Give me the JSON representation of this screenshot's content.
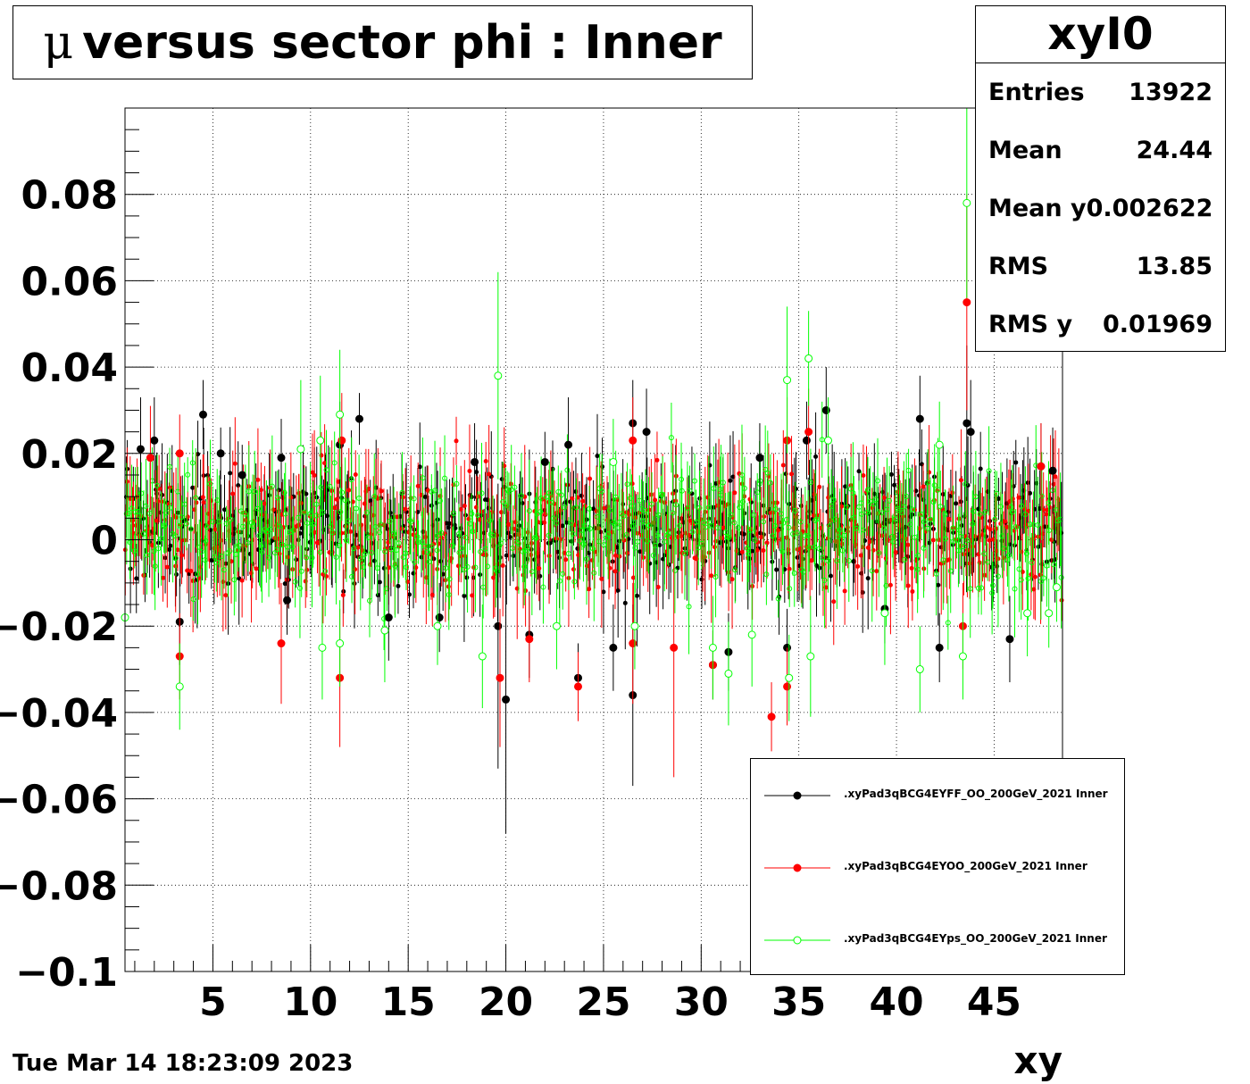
{
  "title": {
    "symbol": "μ",
    "text": "versus sector phi : Inner"
  },
  "stats": {
    "name": "xyI0",
    "rows": [
      {
        "label": "Entries",
        "value": "13922"
      },
      {
        "label": "Mean",
        "value": "24.44"
      },
      {
        "label": "Mean y",
        "value": "0.002622"
      },
      {
        "label": "RMS",
        "value": "13.85"
      },
      {
        "label": "RMS y",
        "value": "0.01969"
      }
    ]
  },
  "legend": [
    {
      "label": ".xyPad3qBCG4EYFF_OO_200GeV_2021 Inner",
      "color": "#000000",
      "marker": "filled-circle"
    },
    {
      "label": ".xyPad3qBCG4EYOO_200GeV_2021 Inner",
      "color": "#ff0000",
      "marker": "filled-circle"
    },
    {
      "label": ".xyPad3qBCG4EYps_OO_200GeV_2021 Inner",
      "color": "#00ff00",
      "marker": "open-circle"
    }
  ],
  "datestamp": "Tue Mar 14 18:23:09 2023",
  "chart_data": {
    "type": "scatter",
    "xlabel": "xy",
    "ylabel": "",
    "xlim": [
      0.5,
      48.5
    ],
    "ylim": [
      -0.1,
      0.1
    ],
    "x_ticks": [
      5,
      10,
      15,
      20,
      25,
      30,
      35,
      40,
      45
    ],
    "y_ticks": [
      -0.1,
      -0.08,
      -0.06,
      -0.04,
      -0.02,
      0,
      0.02,
      0.04,
      0.06,
      0.08
    ],
    "y_tick_labels": [
      "−0.1",
      "−0.08",
      "−0.06",
      "−0.04",
      "−0.02",
      "0",
      "0.02",
      "0.04",
      "0.06",
      "0.08"
    ],
    "grid": true,
    "legend_position": "bottom-right",
    "series": [
      {
        "name": ".xyPad3qBCG4EYFF_OO_200GeV_2021 Inner",
        "color": "#000000",
        "marker": "filled-circle",
        "points": [
          [
            1.3,
            0.021,
            0.012
          ],
          [
            2.0,
            0.023,
            0.01
          ],
          [
            3.3,
            -0.019,
            0.01
          ],
          [
            4.5,
            0.029,
            0.008
          ],
          [
            5.4,
            0.02,
            0.006
          ],
          [
            6.5,
            0.015,
            0.007
          ],
          [
            8.5,
            0.019,
            0.009
          ],
          [
            8.8,
            -0.014,
            0.008
          ],
          [
            11.5,
            0.022,
            0.01
          ],
          [
            12.5,
            0.028,
            0.006
          ],
          [
            14.0,
            -0.018,
            0.01
          ],
          [
            16.6,
            -0.018,
            0.008
          ],
          [
            18.4,
            0.018,
            0.009
          ],
          [
            19.6,
            -0.02,
            0.033
          ],
          [
            20.0,
            -0.037,
            0.031
          ],
          [
            21.2,
            -0.022,
            0.01
          ],
          [
            22.0,
            0.018,
            0.007
          ],
          [
            23.2,
            0.022,
            0.011
          ],
          [
            23.7,
            -0.032,
            0.008
          ],
          [
            25.5,
            -0.025,
            0.01
          ],
          [
            26.5,
            -0.036,
            0.021
          ],
          [
            26.5,
            0.027,
            0.01
          ],
          [
            27.2,
            0.025,
            0.01
          ],
          [
            30.6,
            -0.029,
            0.008
          ],
          [
            31.4,
            -0.026,
            0.009
          ],
          [
            33.0,
            0.019,
            0.008
          ],
          [
            34.4,
            -0.025,
            0.009
          ],
          [
            35.4,
            0.023,
            0.009
          ],
          [
            36.4,
            0.03,
            0.01
          ],
          [
            39.4,
            -0.016,
            0.008
          ],
          [
            41.2,
            0.028,
            0.01
          ],
          [
            42.2,
            -0.025,
            0.008
          ],
          [
            43.6,
            0.027,
            0.018
          ],
          [
            43.8,
            0.025,
            0.012
          ],
          [
            45.8,
            -0.023,
            0.01
          ],
          [
            47.4,
            0.017,
            0.01
          ],
          [
            48.0,
            0.016,
            0.01
          ]
        ]
      },
      {
        "name": ".xyPad3qBCG4EYOO_200GeV_2021 Inner",
        "color": "#ff0000",
        "marker": "filled-circle",
        "points": [
          [
            1.8,
            0.019,
            0.012
          ],
          [
            3.3,
            -0.027,
            0.01
          ],
          [
            3.3,
            0.02,
            0.009
          ],
          [
            8.5,
            -0.024,
            0.014
          ],
          [
            11.5,
            -0.032,
            0.016
          ],
          [
            11.6,
            0.023,
            0.011
          ],
          [
            19.7,
            -0.032,
            0.016
          ],
          [
            21.2,
            -0.023,
            0.01
          ],
          [
            23.7,
            -0.034,
            0.008
          ],
          [
            26.5,
            -0.024,
            0.014
          ],
          [
            26.5,
            0.023,
            0.01
          ],
          [
            28.6,
            -0.025,
            0.03
          ],
          [
            30.6,
            -0.029,
            0.008
          ],
          [
            33.6,
            -0.041,
            0.008
          ],
          [
            34.4,
            -0.034,
            0.009
          ],
          [
            34.4,
            0.023,
            0.01
          ],
          [
            35.5,
            0.025,
            0.01
          ],
          [
            43.6,
            0.055,
            0.025
          ],
          [
            43.4,
            -0.02,
            0.01
          ],
          [
            47.4,
            0.017,
            0.01
          ]
        ]
      },
      {
        "name": ".xyPad3qBCG4EYps_OO_200GeV_2021 Inner",
        "color": "#00ff00",
        "marker": "open-circle",
        "points": [
          [
            0.5,
            -0.018,
            0.012
          ],
          [
            3.3,
            -0.034,
            0.01
          ],
          [
            9.5,
            0.021,
            0.016
          ],
          [
            10.5,
            0.023,
            0.015
          ],
          [
            10.6,
            -0.025,
            0.012
          ],
          [
            11.5,
            0.029,
            0.015
          ],
          [
            11.5,
            -0.024,
            0.01
          ],
          [
            13.8,
            -0.021,
            0.012
          ],
          [
            16.5,
            -0.02,
            0.009
          ],
          [
            18.8,
            -0.027,
            0.012
          ],
          [
            19.6,
            0.038,
            0.024
          ],
          [
            22.6,
            -0.02,
            0.01
          ],
          [
            25.5,
            0.018,
            0.01
          ],
          [
            26.6,
            -0.02,
            0.01
          ],
          [
            30.6,
            -0.025,
            0.012
          ],
          [
            31.4,
            -0.031,
            0.012
          ],
          [
            32.6,
            -0.022,
            0.012
          ],
          [
            34.4,
            0.037,
            0.017
          ],
          [
            34.5,
            -0.032,
            0.01
          ],
          [
            35.5,
            0.042,
            0.011
          ],
          [
            35.6,
            -0.027,
            0.014
          ],
          [
            36.5,
            0.023,
            0.01
          ],
          [
            39.4,
            -0.017,
            0.012
          ],
          [
            41.2,
            -0.03,
            0.01
          ],
          [
            42.2,
            0.022,
            0.01
          ],
          [
            43.4,
            -0.027,
            0.01
          ],
          [
            43.6,
            0.078,
            0.022
          ],
          [
            46.7,
            -0.017,
            0.01
          ],
          [
            47.8,
            -0.017,
            0.008
          ],
          [
            48.2,
            -0.011,
            0.008
          ]
        ]
      }
    ],
    "band": {
      "description_points": 480,
      "center": 0.002622,
      "spread": 0.007
    }
  }
}
